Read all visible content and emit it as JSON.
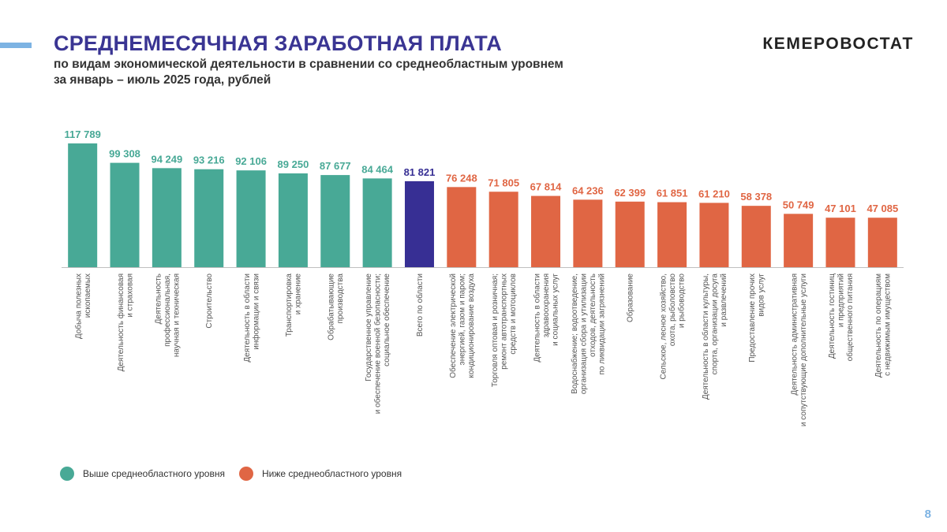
{
  "header": {
    "title": "СРЕДНЕМЕСЯЧНАЯ ЗАРАБОТНАЯ ПЛАТА",
    "subtitle_line1": "по видам экономической деятельности в сравнении со среднеобластным уровнем",
    "subtitle_line2": "за январь – июль 2025 года, рублей",
    "brand": "КЕМЕРОВОСТАТ"
  },
  "legend": {
    "above_label": "Выше среднеобластного уровня",
    "below_label": "Ниже среднеобластного уровня"
  },
  "colors": {
    "above": "#48a996",
    "below": "#e06644",
    "region": "#372f94",
    "title": "#3a3593",
    "accent": "#7db3e3"
  },
  "page_number": "8",
  "chart_data": {
    "type": "bar",
    "categories": [
      [
        "Добыча полезных",
        "ископаемых"
      ],
      [
        "Деятельность финансовая",
        "и страховая"
      ],
      [
        "Деятельность",
        "профессиональная,",
        "научная и техническая"
      ],
      [
        "Строительство"
      ],
      [
        "Деятельность в области",
        "информации и связи"
      ],
      [
        "Транспортировка",
        "и хранение"
      ],
      [
        "Обрабатывающие",
        "производства"
      ],
      [
        "Государственное управление",
        "и обеспечение военной безопасности;",
        "социальное обеспечение"
      ],
      [
        "Всего по области"
      ],
      [
        "Обеспечение электрической",
        "энергией, газом и паром;",
        "кондиционирование воздуха"
      ],
      [
        "Торговля оптовая и розничная;",
        "ремонт автотранспортных",
        "средств и мотоциклов"
      ],
      [
        "Деятельность в области",
        "здравоохранения",
        "и социальных услуг"
      ],
      [
        "Водоснабжение; водоотведение,",
        "организация сбора и утилизации",
        "отходов, деятельность",
        "по ликвидации загрязнений"
      ],
      [
        "Образование"
      ],
      [
        "Сельское, лесное хозяйство,",
        "охота, рыболовство",
        "и рыбоводство"
      ],
      [
        "Деятельность в области культуры,",
        "спорта, организации досуга",
        "и развлечений"
      ],
      [
        "Предоставление прочих",
        "видов услуг"
      ],
      [
        "Деятельность административная",
        "и сопутствующие дополнительные услуги"
      ],
      [
        "Деятельность гостиниц",
        "и предприятий",
        "общественного питания"
      ],
      [
        "Деятельность по операциям",
        "с недвижимым имуществом"
      ]
    ],
    "values": [
      117789,
      99308,
      94249,
      93216,
      92106,
      89250,
      87677,
      84464,
      81821,
      76248,
      71805,
      67814,
      64236,
      62399,
      61851,
      61210,
      58378,
      50749,
      47101,
      47085
    ],
    "value_labels": [
      "117 789",
      "99 308",
      "94 249",
      "93 216",
      "92 106",
      "89 250",
      "87 677",
      "84 464",
      "81 821",
      "76 248",
      "71 805",
      "67 814",
      "64 236",
      "62 399",
      "61 851",
      "61 210",
      "58 378",
      "50 749",
      "47 101",
      "47 085"
    ],
    "groups": [
      "above",
      "above",
      "above",
      "above",
      "above",
      "above",
      "above",
      "above",
      "region",
      "below",
      "below",
      "below",
      "below",
      "below",
      "below",
      "below",
      "below",
      "below",
      "below",
      "below"
    ],
    "ylim": [
      0,
      120000
    ]
  }
}
